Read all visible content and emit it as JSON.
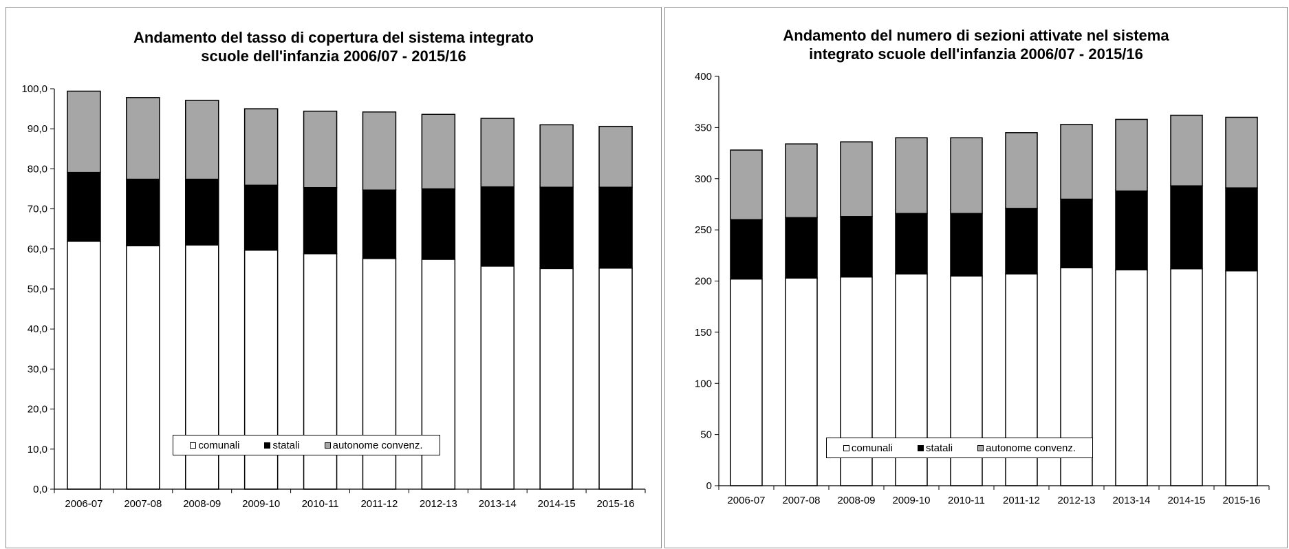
{
  "chart_data": [
    {
      "type": "bar",
      "stacked": true,
      "title": "Andamento del tasso di copertura del sistema integrato scuole dell'infanzia 2006/07 - 2015/16",
      "title_lines": [
        "Andamento del tasso di copertura del sistema integrato",
        "scuole dell'infanzia 2006/07 - 2015/16"
      ],
      "categories": [
        "2006-07",
        "2007-08",
        "2008-09",
        "2009-10",
        "2010-11",
        "2011-12",
        "2012-13",
        "2013-14",
        "2014-15",
        "2015-16"
      ],
      "series": [
        {
          "name": "comunali",
          "color": "#ffffff",
          "values": [
            61.9,
            60.8,
            61.0,
            59.7,
            58.8,
            57.6,
            57.4,
            55.7,
            55.1,
            55.2
          ]
        },
        {
          "name": "statali",
          "color": "#000000",
          "values": [
            17.2,
            16.6,
            16.4,
            16.2,
            16.5,
            17.1,
            17.6,
            19.8,
            20.3,
            20.2
          ]
        },
        {
          "name": "autonome convenz.",
          "color": "#a6a6a6",
          "values": [
            20.3,
            20.4,
            19.7,
            19.1,
            19.1,
            19.5,
            18.6,
            17.1,
            15.6,
            15.2
          ]
        }
      ],
      "ylim": [
        0,
        100
      ],
      "yticks": [
        "0,0",
        "10,0",
        "20,0",
        "30,0",
        "40,0",
        "50,0",
        "60,0",
        "70,0",
        "80,0",
        "90,0",
        "100,0"
      ],
      "xlabel": "",
      "ylabel": "",
      "grid": false,
      "legend_position": "bottom"
    },
    {
      "type": "bar",
      "stacked": true,
      "title": "Andamento del numero di sezioni attivate nel sistema integrato scuole dell'infanzia 2006/07 - 2015/16",
      "title_lines": [
        "Andamento del numero di sezioni attivate nel sistema",
        "integrato scuole dell'infanzia 2006/07 - 2015/16"
      ],
      "categories": [
        "2006-07",
        "2007-08",
        "2008-09",
        "2009-10",
        "2010-11",
        "2011-12",
        "2012-13",
        "2013-14",
        "2014-15",
        "2015-16"
      ],
      "series": [
        {
          "name": "comunali",
          "color": "#ffffff",
          "values": [
            202,
            203,
            204,
            207,
            205,
            207,
            213,
            211,
            212,
            210
          ]
        },
        {
          "name": "statali",
          "color": "#000000",
          "values": [
            58,
            59,
            59,
            59,
            61,
            64,
            67,
            77,
            81,
            81
          ]
        },
        {
          "name": "autonome convenz.",
          "color": "#a6a6a6",
          "values": [
            68,
            72,
            73,
            74,
            74,
            74,
            73,
            70,
            69,
            69
          ]
        }
      ],
      "ylim": [
        0,
        400
      ],
      "yticks": [
        "0",
        "50",
        "100",
        "150",
        "200",
        "250",
        "300",
        "350",
        "400"
      ],
      "xlabel": "",
      "ylabel": "",
      "grid": false,
      "legend_position": "bottom"
    }
  ]
}
